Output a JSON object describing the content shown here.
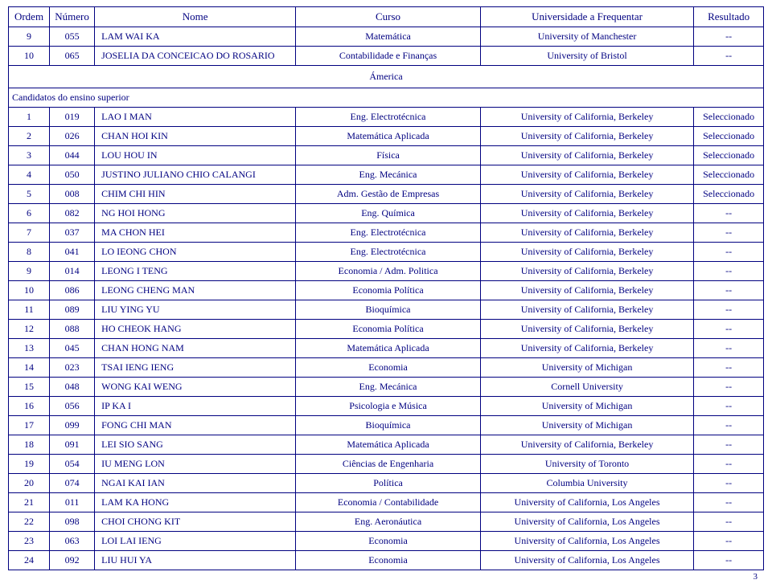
{
  "headers": {
    "ordem": "Ordem",
    "numero": "Número",
    "nome": "Nome",
    "curso": "Curso",
    "universidade": "Universidade a Frequentar",
    "resultado": "Resultado"
  },
  "top_rows": [
    {
      "ordem": "9",
      "numero": "055",
      "nome": "LAM WAI KA",
      "curso": "Matemática",
      "univ": "University of Manchester",
      "res": "--"
    },
    {
      "ordem": "10",
      "numero": "065",
      "nome": "JOSELIA DA CONCEICAO DO ROSARIO",
      "curso": "Contabilidade e Finanças",
      "univ": "University of Bristol",
      "res": "--"
    }
  ],
  "region": "Ámerica",
  "subheading": "Candidatos do ensino superior",
  "rows": [
    {
      "ordem": "1",
      "numero": "019",
      "nome": "LAO I MAN",
      "curso": "Eng. Electrotécnica",
      "univ": "University of California, Berkeley",
      "res": "Seleccionado"
    },
    {
      "ordem": "2",
      "numero": "026",
      "nome": "CHAN HOI KIN",
      "curso": "Matemática Aplicada",
      "univ": "University of California, Berkeley",
      "res": "Seleccionado"
    },
    {
      "ordem": "3",
      "numero": "044",
      "nome": "LOU HOU IN",
      "curso": "Física",
      "univ": "University of California, Berkeley",
      "res": "Seleccionado"
    },
    {
      "ordem": "4",
      "numero": "050",
      "nome": "JUSTINO JULIANO CHIO CALANGI",
      "curso": "Eng. Mecánica",
      "univ": "University of California, Berkeley",
      "res": "Seleccionado"
    },
    {
      "ordem": "5",
      "numero": "008",
      "nome": "CHIM CHI HIN",
      "curso": "Adm. Gestão de Empresas",
      "univ": "University of California, Berkeley",
      "res": "Seleccionado"
    },
    {
      "ordem": "6",
      "numero": "082",
      "nome": "NG HOI HONG",
      "curso": "Eng. Química",
      "univ": "University of California, Berkeley",
      "res": "--"
    },
    {
      "ordem": "7",
      "numero": "037",
      "nome": "MA CHON HEI",
      "curso": "Eng. Electrotécnica",
      "univ": "University of California, Berkeley",
      "res": "--"
    },
    {
      "ordem": "8",
      "numero": "041",
      "nome": "LO IEONG CHON",
      "curso": "Eng. Electrotécnica",
      "univ": "University of California, Berkeley",
      "res": "--"
    },
    {
      "ordem": "9",
      "numero": "014",
      "nome": "LEONG I TENG",
      "curso": "Economia / Adm. Politica",
      "univ": "University of California, Berkeley",
      "res": "--"
    },
    {
      "ordem": "10",
      "numero": "086",
      "nome": "LEONG CHENG MAN",
      "curso": "Economia Política",
      "univ": "University of California, Berkeley",
      "res": "--"
    },
    {
      "ordem": "11",
      "numero": "089",
      "nome": "LIU YING YU",
      "curso": "Bioquímica",
      "univ": "University of California, Berkeley",
      "res": "--"
    },
    {
      "ordem": "12",
      "numero": "088",
      "nome": "HO CHEOK HANG",
      "curso": "Economia Política",
      "univ": "University of California, Berkeley",
      "res": "--"
    },
    {
      "ordem": "13",
      "numero": "045",
      "nome": "CHAN HONG NAM",
      "curso": "Matemática Aplicada",
      "univ": "University of California, Berkeley",
      "res": "--"
    },
    {
      "ordem": "14",
      "numero": "023",
      "nome": "TSAI IENG IENG",
      "curso": "Economia",
      "univ": "University of Michigan",
      "res": "--"
    },
    {
      "ordem": "15",
      "numero": "048",
      "nome": "WONG KAI WENG",
      "curso": "Eng. Mecánica",
      "univ": "Cornell University",
      "res": "--"
    },
    {
      "ordem": "16",
      "numero": "056",
      "nome": "IP KA I",
      "curso": "Psicologia e Música",
      "univ": "University of Michigan",
      "res": "--"
    },
    {
      "ordem": "17",
      "numero": "099",
      "nome": "FONG CHI MAN",
      "curso": "Bioquímica",
      "univ": "University of Michigan",
      "res": "--"
    },
    {
      "ordem": "18",
      "numero": "091",
      "nome": "LEI SIO SANG",
      "curso": "Matemática Aplicada",
      "univ": "University of California, Berkeley",
      "res": "--"
    },
    {
      "ordem": "19",
      "numero": "054",
      "nome": "IU MENG LON",
      "curso": "Ciências de Engenharia",
      "univ": "University of Toronto",
      "res": "--"
    },
    {
      "ordem": "20",
      "numero": "074",
      "nome": "NGAI KAI IAN",
      "curso": "Política",
      "univ": "Columbia University",
      "res": "--"
    },
    {
      "ordem": "21",
      "numero": "011",
      "nome": "LAM KA HONG",
      "curso": "Economia / Contabilidade",
      "univ": "University of California, Los Angeles",
      "res": "--"
    },
    {
      "ordem": "22",
      "numero": "098",
      "nome": "CHOI CHONG KIT",
      "curso": "Eng. Aeronáutica",
      "univ": "University of California, Los Angeles",
      "res": "--"
    },
    {
      "ordem": "23",
      "numero": "063",
      "nome": "LOI LAI IENG",
      "curso": "Economia",
      "univ": "University of California, Los Angeles",
      "res": "--"
    },
    {
      "ordem": "24",
      "numero": "092",
      "nome": "LIU HUI YA",
      "curso": "Economia",
      "univ": "University of California, Los Angeles",
      "res": "--"
    }
  ],
  "page_number": "3"
}
